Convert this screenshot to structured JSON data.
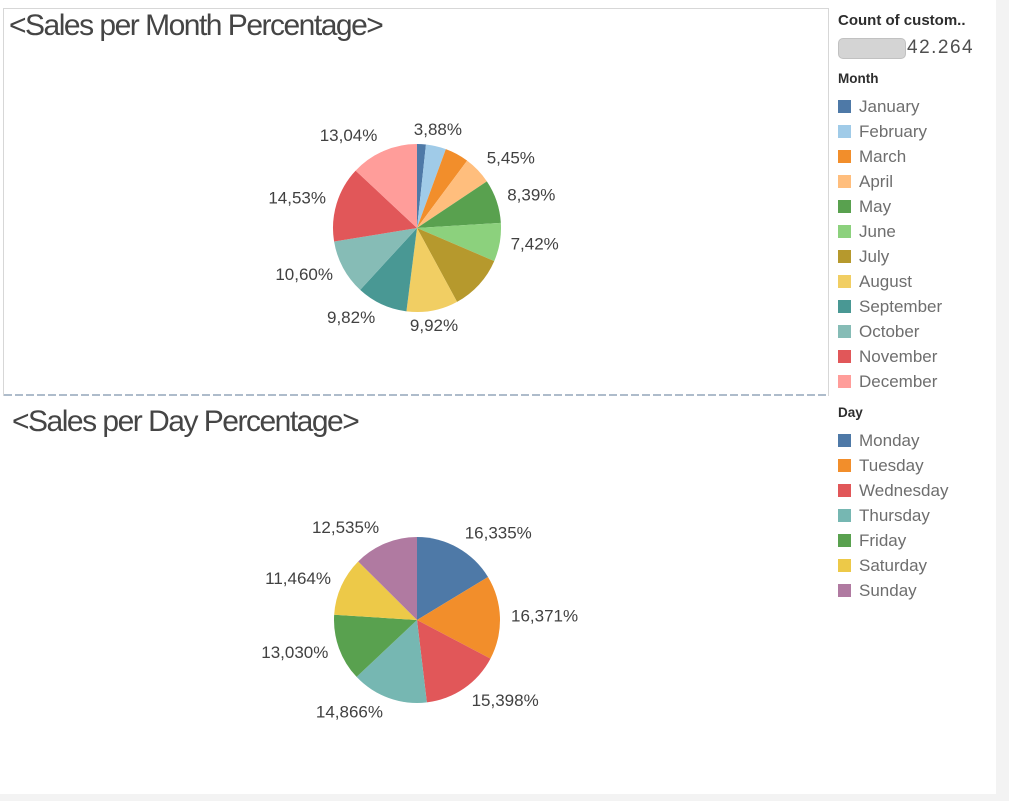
{
  "panels": {
    "month": {
      "title": "<Sales per Month Percentage>"
    },
    "day": {
      "title": "<Sales per Day Percentage>"
    }
  },
  "legend": {
    "size": {
      "title": "Count of custom..",
      "value": "42.264"
    },
    "month": {
      "title": "Month",
      "items": [
        {
          "label": "January",
          "color": "#4E79A7"
        },
        {
          "label": "February",
          "color": "#A0CBE8"
        },
        {
          "label": "March",
          "color": "#F28E2B"
        },
        {
          "label": "April",
          "color": "#FFBE7D"
        },
        {
          "label": "May",
          "color": "#59A14F"
        },
        {
          "label": "June",
          "color": "#8CD17D"
        },
        {
          "label": "July",
          "color": "#B6992D"
        },
        {
          "label": "August",
          "color": "#F1CE63"
        },
        {
          "label": "September",
          "color": "#499894"
        },
        {
          "label": "October",
          "color": "#86BCB6"
        },
        {
          "label": "November",
          "color": "#E15759"
        },
        {
          "label": "December",
          "color": "#FF9D9A"
        }
      ]
    },
    "day": {
      "title": "Day",
      "items": [
        {
          "label": "Monday",
          "color": "#4E79A7"
        },
        {
          "label": "Tuesday",
          "color": "#F28E2B"
        },
        {
          "label": "Wednesday",
          "color": "#E15759"
        },
        {
          "label": "Thursday",
          "color": "#76B7B2"
        },
        {
          "label": "Friday",
          "color": "#59A14F"
        },
        {
          "label": "Saturday",
          "color": "#EDC948"
        },
        {
          "label": "Sunday",
          "color": "#B07AA1"
        }
      ]
    }
  },
  "chart_data": [
    {
      "type": "pie",
      "title": "<Sales per Month Percentage>",
      "legend_title": "Month",
      "start_angle": "12 o'clock",
      "direction": "clockwise",
      "note": "slices without a visible data label have values estimated from arc angles",
      "slices": [
        {
          "name": "January",
          "value": 1.7,
          "label": "",
          "color": "#4E79A7",
          "estimated": true
        },
        {
          "name": "February",
          "value": 3.88,
          "label": "3,88%",
          "color": "#A0CBE8"
        },
        {
          "name": "March",
          "value": 4.6,
          "label": "",
          "color": "#F28E2B",
          "estimated": true
        },
        {
          "name": "April",
          "value": 5.45,
          "label": "5,45%",
          "color": "#FFBE7D"
        },
        {
          "name": "May",
          "value": 8.39,
          "label": "8,39%",
          "color": "#59A14F"
        },
        {
          "name": "June",
          "value": 7.42,
          "label": "7,42%",
          "color": "#8CD17D"
        },
        {
          "name": "July",
          "value": 10.65,
          "label": "",
          "color": "#B6992D",
          "estimated": true
        },
        {
          "name": "August",
          "value": 9.92,
          "label": "9,92%",
          "color": "#F1CE63"
        },
        {
          "name": "September",
          "value": 9.82,
          "label": "9,82%",
          "color": "#499894"
        },
        {
          "name": "October",
          "value": 10.6,
          "label": "10,60%",
          "color": "#86BCB6"
        },
        {
          "name": "November",
          "value": 14.53,
          "label": "14,53%",
          "color": "#E15759"
        },
        {
          "name": "December",
          "value": 13.04,
          "label": "13,04%",
          "color": "#FF9D9A"
        }
      ]
    },
    {
      "type": "pie",
      "title": "<Sales per Day Percentage>",
      "legend_title": "Day",
      "start_angle": "12 o'clock",
      "direction": "clockwise",
      "slices": [
        {
          "name": "Monday",
          "value": 16.335,
          "label": "16,335%",
          "color": "#4E79A7"
        },
        {
          "name": "Tuesday",
          "value": 16.371,
          "label": "16,371%",
          "color": "#F28E2B"
        },
        {
          "name": "Wednesday",
          "value": 15.398,
          "label": "15,398%",
          "color": "#E15759"
        },
        {
          "name": "Thursday",
          "value": 14.866,
          "label": "14,866%",
          "color": "#76B7B2"
        },
        {
          "name": "Friday",
          "value": 13.03,
          "label": "13,030%",
          "color": "#59A14F"
        },
        {
          "name": "Saturday",
          "value": 11.464,
          "label": "11,464%",
          "color": "#EDC948"
        },
        {
          "name": "Sunday",
          "value": 12.535,
          "label": "12,535%",
          "color": "#B07AA1"
        }
      ]
    }
  ]
}
